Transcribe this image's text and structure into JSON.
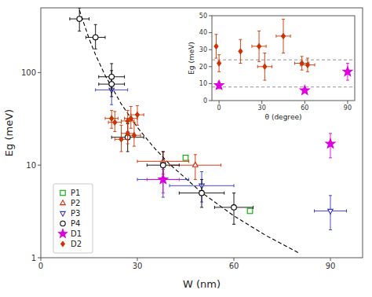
{
  "chart_data": [
    {
      "type": "scatter",
      "xlabel": "W (nm)",
      "ylabel": "Eg (meV)",
      "log": "y",
      "xlim": [
        0,
        100
      ],
      "ylim": [
        1,
        500
      ],
      "xticks": [
        0,
        30,
        60,
        90
      ],
      "yticks": [
        1,
        10,
        100
      ],
      "grid": false,
      "legend": "lower left",
      "series": [
        {
          "name": "P1",
          "color": "#00aa00",
          "marker": "square-open",
          "x": [
            45,
            65
          ],
          "values": [
            12,
            3.2
          ],
          "x_err": [
            0,
            0
          ],
          "y_err_lo": [
            0,
            0
          ],
          "y_err_hi": [
            0,
            0
          ]
        },
        {
          "name": "P2",
          "color": "#dd2200",
          "marker": "triangle-up-open",
          "x": [
            38,
            48
          ],
          "values": [
            11,
            10
          ],
          "x_err": [
            8,
            8
          ],
          "y_err_lo": [
            3,
            3
          ],
          "y_err_hi": [
            3,
            3
          ]
        },
        {
          "name": "P3",
          "color": "#3333cc",
          "marker": "triangle-down-open",
          "x": [
            22,
            38,
            50,
            90
          ],
          "values": [
            65,
            7,
            6,
            3.2
          ],
          "x_err": [
            5,
            8,
            10,
            5
          ],
          "y_err_lo": [
            20,
            2.5,
            2,
            1.2
          ],
          "y_err_hi": [
            25,
            3,
            2.5,
            1.5
          ]
        },
        {
          "name": "P4",
          "color": "#000000",
          "marker": "circle-open",
          "x": [
            12,
            17,
            22,
            22,
            27,
            38,
            50,
            60
          ],
          "values": [
            380,
            240,
            90,
            75,
            20,
            10,
            5,
            3.5
          ],
          "x_err": [
            3,
            3,
            4,
            4,
            5,
            5,
            7,
            6
          ],
          "y_err_lo": [
            100,
            60,
            25,
            20,
            6,
            3,
            1.5,
            1.2
          ],
          "y_err_hi": [
            120,
            90,
            35,
            30,
            8,
            4,
            2,
            1.5
          ]
        },
        {
          "name": "D1",
          "color": "#dd00dd",
          "marker": "star",
          "x": [
            38,
            90
          ],
          "values": [
            7,
            17
          ],
          "x_err": [
            5,
            0
          ],
          "y_err_lo": [
            2,
            5
          ],
          "y_err_hi": [
            2,
            5
          ]
        },
        {
          "name": "D2",
          "color": "#cc3300",
          "marker": "diamond",
          "x": [
            22,
            23,
            25,
            27,
            27,
            28,
            29,
            30
          ],
          "values": [
            32,
            29,
            19,
            30,
            22,
            32,
            21,
            35
          ],
          "x_err": [
            2,
            2,
            2,
            2,
            2,
            2,
            2,
            2
          ],
          "y_err_lo": [
            7,
            6,
            5,
            7,
            5,
            7,
            5,
            8
          ],
          "y_err_hi": [
            7,
            9,
            8,
            9,
            8,
            11,
            8,
            9
          ]
        },
        {
          "type": "line",
          "line_style": "dashed",
          "color": "#000000",
          "x": [
            12,
            15,
            17,
            20,
            25,
            30,
            35,
            40,
            50,
            60,
            70,
            80
          ],
          "values": [
            471.7,
            232.1,
            155.9,
            93.02,
            45.77,
            25.64,
            15.71,
            10.27,
            5.055,
            2.832,
            1.735,
            1.135
          ]
        }
      ]
    },
    {
      "type": "scatter",
      "xlabel": "θ (degree)",
      "ylabel": "Eg (meV)",
      "xlim": [
        -5,
        95
      ],
      "ylim": [
        0,
        50
      ],
      "xticks": [
        0,
        30,
        60,
        90
      ],
      "yticks": [
        0,
        10,
        20,
        30,
        40,
        50
      ],
      "grid": false,
      "legend": false,
      "hlines": [
        24,
        8
      ],
      "series": [
        {
          "name": "D2",
          "color": "#cc3300",
          "marker": "diamond",
          "x": [
            -2,
            0,
            15,
            28,
            32,
            45,
            58,
            62
          ],
          "values": [
            32,
            22,
            29,
            32,
            20,
            38,
            22,
            21
          ],
          "x_err": [
            0,
            0,
            0,
            5,
            5,
            5,
            5,
            5
          ],
          "y_err": [
            7,
            5,
            7,
            9,
            8,
            10,
            4,
            4
          ]
        },
        {
          "name": "D1",
          "color": "#dd00dd",
          "marker": "star",
          "x": [
            0,
            60,
            90
          ],
          "values": [
            9,
            6,
            17
          ],
          "x_err": [
            0,
            0,
            0
          ],
          "y_err": [
            2,
            1,
            5
          ]
        }
      ]
    }
  ]
}
